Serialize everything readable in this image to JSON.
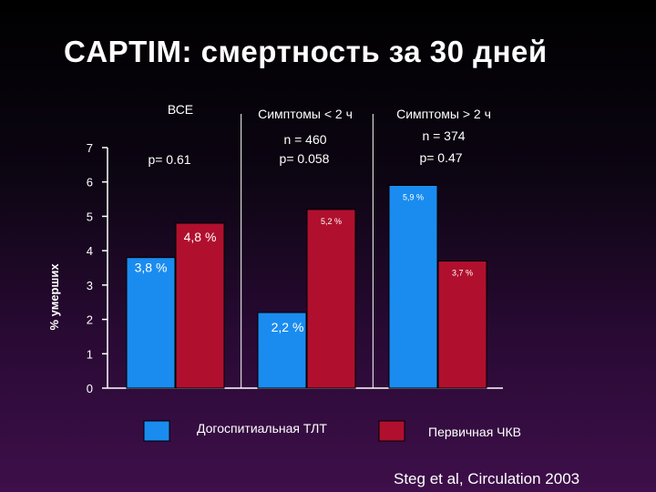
{
  "slide": {
    "title": "CAPTIM: смертность за 30 дней",
    "citation": "Steg et al, Circulation 2003"
  },
  "colors": {
    "tlt": "#1a8cf0",
    "pci": "#b0102e",
    "axis": "#ffffff"
  },
  "chart_data": {
    "type": "bar",
    "ylabel": "% умерших",
    "ylim": [
      0,
      7
    ],
    "yticks": [
      "0",
      "1",
      "2",
      "3",
      "4",
      "5",
      "6",
      "7"
    ],
    "groups": [
      {
        "header": "ВСЕ",
        "n": "",
        "p": "p= 0.61"
      },
      {
        "header": "Симптомы < 2 ч",
        "n": "n = 460",
        "p": "p= 0.058"
      },
      {
        "header": "Симптомы  > 2 ч",
        "n": "n = 374",
        "p": "p= 0.47"
      }
    ],
    "series": [
      {
        "name": "Догоспитиальная ТЛТ",
        "values": [
          3.8,
          2.2,
          5.9
        ],
        "labels": [
          "3,8 %",
          "2,2 %",
          "5,9 %"
        ]
      },
      {
        "name": "Первичная ЧКВ",
        "values": [
          4.8,
          5.2,
          3.7
        ],
        "labels": [
          "4,8 %",
          "5,2 %",
          "3,7 %"
        ]
      }
    ],
    "legend": "bottom",
    "grid": false
  }
}
